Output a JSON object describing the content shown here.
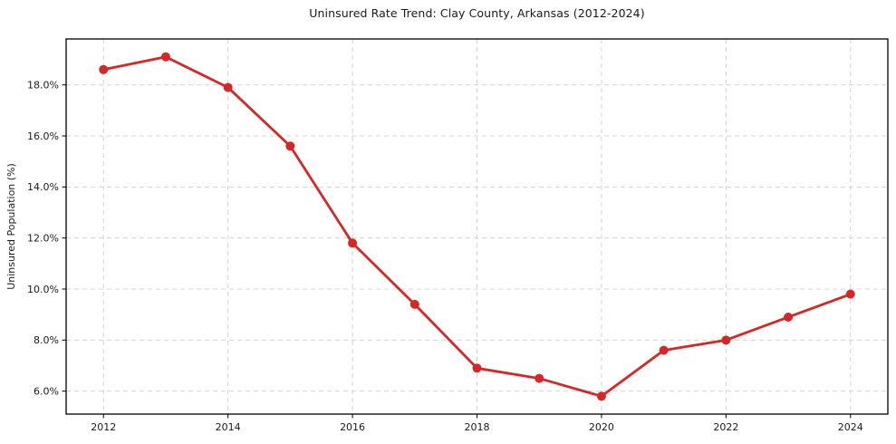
{
  "figure": {
    "background": "#ffffff"
  },
  "chart_data": {
    "type": "line",
    "title": "Uninsured Rate Trend: Clay County, Arkansas (2012-2024)",
    "xlabel": "",
    "ylabel": "Uninsured Population (%)",
    "x": [
      2012,
      2013,
      2014,
      2015,
      2016,
      2017,
      2018,
      2019,
      2020,
      2021,
      2022,
      2023,
      2024
    ],
    "series": [
      {
        "name": "Uninsured rate",
        "color": "#d62728",
        "values": [
          18.6,
          19.1,
          17.9,
          15.6,
          11.8,
          9.4,
          6.9,
          6.5,
          5.8,
          7.6,
          8.0,
          8.9,
          9.8
        ]
      }
    ],
    "xlim": [
      2011.4,
      2024.6
    ],
    "ylim": [
      5.1,
      19.8
    ],
    "x_ticks": [
      2012,
      2014,
      2016,
      2018,
      2020,
      2022,
      2024
    ],
    "x_tick_labels": [
      "2012",
      "2014",
      "2016",
      "2018",
      "2020",
      "2022",
      "2024"
    ],
    "y_ticks": [
      6,
      8,
      10,
      12,
      14,
      16,
      18
    ],
    "y_tick_labels": [
      "6.0%",
      "8.0%",
      "10.0%",
      "12.0%",
      "14.0%",
      "16.0%",
      "18.0%"
    ],
    "grid": true,
    "grid_style": "dashed",
    "grid_color": "#d4d4d4",
    "axis_color": "#000000",
    "text_color": "#1a1a1a",
    "legend": "none",
    "marker": "circle"
  }
}
